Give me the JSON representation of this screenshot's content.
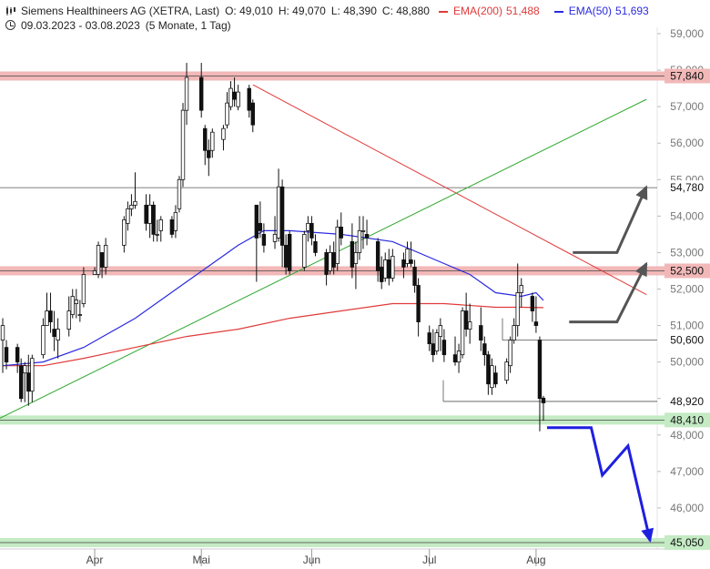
{
  "header": {
    "title": "Siemens Healthineers AG (XETRA, Last)",
    "open": "O: 49,010",
    "high": "H: 49,070",
    "low": "L: 48,390",
    "close": "C: 48,880",
    "ema200_label": "EMA(200)",
    "ema200_value": "51,488",
    "ema50_label": "EMA(50)",
    "ema50_value": "51,693",
    "period": "09.03.2023 - 03.08.2023",
    "interval": "(5 Monate, 1 Tag)",
    "ema200_color": "#e03a3a",
    "ema50_color": "#2a2ae0"
  },
  "chart_data": {
    "type": "candlestick",
    "ylim": [
      44950,
      59150
    ],
    "y_ticks": [
      {
        "value": 59000,
        "label": "59,000"
      },
      {
        "value": 58000,
        "label": "58,000"
      },
      {
        "value": 57000,
        "label": "57,000"
      },
      {
        "value": 56000,
        "label": "56,000"
      },
      {
        "value": 55000,
        "label": "55,000"
      },
      {
        "value": 54000,
        "label": "54,000"
      },
      {
        "value": 53000,
        "label": "53,000"
      },
      {
        "value": 52000,
        "label": "52,000"
      },
      {
        "value": 51000,
        "label": "51,000"
      },
      {
        "value": 50000,
        "label": "50,000"
      },
      {
        "value": 49000,
        "label": "49,000"
      },
      {
        "value": 48000,
        "label": "48,000"
      },
      {
        "value": 47000,
        "label": "47,000"
      },
      {
        "value": 46000,
        "label": "46,000"
      }
    ],
    "x_ticks": [
      {
        "label": "Apr",
        "date": "2023-04-03"
      },
      {
        "label": "Mai",
        "date": "2023-05-02"
      },
      {
        "label": "Jun",
        "date": "2023-06-01"
      },
      {
        "label": "Jul",
        "date": "2023-07-03"
      },
      {
        "label": "Aug",
        "date": "2023-08-01"
      }
    ],
    "candles": [
      {
        "date": "2023-03-09",
        "o": 50.6,
        "h": 51.2,
        "l": 49.7,
        "c": 51.0
      },
      {
        "date": "2023-03-10",
        "o": 50.4,
        "h": 50.6,
        "l": 49.8,
        "c": 50.0
      },
      {
        "date": "2023-03-13",
        "o": 50.4,
        "h": 50.5,
        "l": 49.7,
        "c": 50.0
      },
      {
        "date": "2023-03-14",
        "o": 49.9,
        "h": 50.1,
        "l": 48.9,
        "c": 49.0
      },
      {
        "date": "2023-03-15",
        "o": 49.7,
        "h": 50.0,
        "l": 48.9,
        "c": 49.9
      },
      {
        "date": "2023-03-16",
        "o": 49.7,
        "h": 50.2,
        "l": 48.8,
        "c": 49.2
      },
      {
        "date": "2023-03-17",
        "o": 49.2,
        "h": 50.2,
        "l": 48.9,
        "c": 50.1
      },
      {
        "date": "2023-03-20",
        "o": 50.2,
        "h": 51.2,
        "l": 50.1,
        "c": 51.0
      },
      {
        "date": "2023-03-21",
        "o": 51.0,
        "h": 51.9,
        "l": 51.0,
        "c": 51.4
      },
      {
        "date": "2023-03-22",
        "o": 51.4,
        "h": 51.9,
        "l": 50.8,
        "c": 51.1
      },
      {
        "date": "2023-03-23",
        "o": 50.9,
        "h": 51.4,
        "l": 50.3,
        "c": 50.7
      },
      {
        "date": "2023-03-24",
        "o": 50.6,
        "h": 51.2,
        "l": 50.1,
        "c": 50.9
      },
      {
        "date": "2023-03-27",
        "o": 50.9,
        "h": 51.8,
        "l": 50.7,
        "c": 51.4
      },
      {
        "date": "2023-03-28",
        "o": 51.3,
        "h": 52.0,
        "l": 51.2,
        "c": 51.8
      },
      {
        "date": "2023-03-29",
        "o": 51.6,
        "h": 52.0,
        "l": 51.2,
        "c": 51.7
      },
      {
        "date": "2023-03-30",
        "o": 51.3,
        "h": 51.7,
        "l": 51.1,
        "c": 51.3
      },
      {
        "date": "2023-03-31",
        "o": 51.6,
        "h": 52.6,
        "l": 51.5,
        "c": 52.4
      },
      {
        "date": "2023-04-03",
        "o": 52.4,
        "h": 52.6,
        "l": 52.4,
        "c": 52.5
      },
      {
        "date": "2023-04-04",
        "o": 52.4,
        "h": 53.3,
        "l": 52.3,
        "c": 53.2
      },
      {
        "date": "2023-04-05",
        "o": 53.0,
        "h": 53.0,
        "l": 52.3,
        "c": 52.6
      },
      {
        "date": "2023-04-06",
        "o": 52.6,
        "h": 53.4,
        "l": 52.4,
        "c": 53.2
      },
      {
        "date": "2023-04-11",
        "o": 53.2,
        "h": 54.0,
        "l": 53.0,
        "c": 53.9
      },
      {
        "date": "2023-04-12",
        "o": 53.8,
        "h": 54.4,
        "l": 53.6,
        "c": 54.2
      },
      {
        "date": "2023-04-13",
        "o": 54.2,
        "h": 54.6,
        "l": 54.0,
        "c": 54.3
      },
      {
        "date": "2023-04-14",
        "o": 54.3,
        "h": 55.2,
        "l": 54.2,
        "c": 54.4
      },
      {
        "date": "2023-04-17",
        "o": 54.3,
        "h": 54.6,
        "l": 53.6,
        "c": 53.8
      },
      {
        "date": "2023-04-18",
        "o": 53.8,
        "h": 54.6,
        "l": 53.4,
        "c": 54.3
      },
      {
        "date": "2023-04-19",
        "o": 54.3,
        "h": 54.4,
        "l": 53.3,
        "c": 53.5
      },
      {
        "date": "2023-04-20",
        "o": 53.5,
        "h": 53.9,
        "l": 53.3,
        "c": 53.5
      },
      {
        "date": "2023-04-21",
        "o": 53.6,
        "h": 54.0,
        "l": 53.3,
        "c": 53.9
      },
      {
        "date": "2023-04-24",
        "o": 53.9,
        "h": 54.0,
        "l": 53.4,
        "c": 53.5
      },
      {
        "date": "2023-04-25",
        "o": 53.6,
        "h": 54.3,
        "l": 53.4,
        "c": 54.1
      },
      {
        "date": "2023-04-26",
        "o": 54.2,
        "h": 55.1,
        "l": 54.1,
        "c": 55.0
      },
      {
        "date": "2023-04-27",
        "o": 55.0,
        "h": 57.1,
        "l": 54.8,
        "c": 56.9
      },
      {
        "date": "2023-04-28",
        "o": 56.9,
        "h": 58.2,
        "l": 56.5,
        "c": 57.8
      },
      {
        "date": "2023-05-02",
        "o": 57.8,
        "h": 58.2,
        "l": 56.7,
        "c": 56.9
      },
      {
        "date": "2023-05-03",
        "o": 56.4,
        "h": 56.5,
        "l": 55.4,
        "c": 55.8
      },
      {
        "date": "2023-05-04",
        "o": 55.8,
        "h": 56.1,
        "l": 55.1,
        "c": 55.6
      },
      {
        "date": "2023-05-05",
        "o": 55.8,
        "h": 56.4,
        "l": 55.6,
        "c": 56.3
      },
      {
        "date": "2023-05-08",
        "o": 56.1,
        "h": 56.5,
        "l": 55.8,
        "c": 56.4
      },
      {
        "date": "2023-05-09",
        "o": 56.5,
        "h": 57.4,
        "l": 56.4,
        "c": 57.1
      },
      {
        "date": "2023-05-10",
        "o": 57.0,
        "h": 57.7,
        "l": 56.9,
        "c": 57.5
      },
      {
        "date": "2023-05-11",
        "o": 57.4,
        "h": 57.8,
        "l": 57.0,
        "c": 57.2
      },
      {
        "date": "2023-05-12",
        "o": 57.0,
        "h": 57.6,
        "l": 56.9,
        "c": 57.4
      },
      {
        "date": "2023-05-15",
        "o": 57.5,
        "h": 57.6,
        "l": 56.7,
        "c": 56.9
      },
      {
        "date": "2023-05-16",
        "o": 57.1,
        "h": 57.2,
        "l": 56.3,
        "c": 56.5
      },
      {
        "date": "2023-05-17",
        "o": 54.3,
        "h": 54.3,
        "l": 52.2,
        "c": 53.4
      },
      {
        "date": "2023-05-18",
        "o": 53.8,
        "h": 54.4,
        "l": 53.4,
        "c": 53.6
      },
      {
        "date": "2023-05-19",
        "o": 53.5,
        "h": 53.8,
        "l": 53.0,
        "c": 53.2
      },
      {
        "date": "2023-05-22",
        "o": 53.3,
        "h": 54.0,
        "l": 53.1,
        "c": 53.5
      },
      {
        "date": "2023-05-23",
        "o": 53.4,
        "h": 55.3,
        "l": 53.3,
        "c": 54.8
      },
      {
        "date": "2023-05-24",
        "o": 54.8,
        "h": 55.0,
        "l": 52.6,
        "c": 53.2
      },
      {
        "date": "2023-05-25",
        "o": 53.2,
        "h": 53.5,
        "l": 52.4,
        "c": 52.6
      },
      {
        "date": "2023-05-26",
        "o": 53.5,
        "h": 53.6,
        "l": 52.4,
        "c": 52.5
      },
      {
        "date": "2023-05-30",
        "o": 52.6,
        "h": 53.6,
        "l": 52.5,
        "c": 53.5
      },
      {
        "date": "2023-05-31",
        "o": 53.6,
        "h": 54.0,
        "l": 53.3,
        "c": 53.8
      },
      {
        "date": "2023-06-01",
        "o": 53.8,
        "h": 54.0,
        "l": 53.2,
        "c": 53.4
      },
      {
        "date": "2023-06-02",
        "o": 53.3,
        "h": 53.5,
        "l": 52.9,
        "c": 53.0
      },
      {
        "date": "2023-06-05",
        "o": 53.0,
        "h": 53.1,
        "l": 52.1,
        "c": 52.4
      },
      {
        "date": "2023-06-06",
        "o": 52.5,
        "h": 53.2,
        "l": 52.4,
        "c": 53.0
      },
      {
        "date": "2023-06-07",
        "o": 53.0,
        "h": 53.3,
        "l": 52.4,
        "c": 52.6
      },
      {
        "date": "2023-06-08",
        "o": 52.7,
        "h": 53.9,
        "l": 52.5,
        "c": 53.7
      },
      {
        "date": "2023-06-09",
        "o": 53.7,
        "h": 54.1,
        "l": 53.2,
        "c": 53.4
      },
      {
        "date": "2023-06-12",
        "o": 53.3,
        "h": 53.8,
        "l": 52.3,
        "c": 52.6
      },
      {
        "date": "2023-06-13",
        "o": 52.7,
        "h": 53.3,
        "l": 52.0,
        "c": 53.0
      },
      {
        "date": "2023-06-14",
        "o": 53.0,
        "h": 54.0,
        "l": 52.8,
        "c": 53.6
      },
      {
        "date": "2023-06-15",
        "o": 53.6,
        "h": 54.0,
        "l": 53.1,
        "c": 53.6
      },
      {
        "date": "2023-06-16",
        "o": 53.5,
        "h": 53.9,
        "l": 53.2,
        "c": 53.4
      },
      {
        "date": "2023-06-19",
        "o": 53.3,
        "h": 53.4,
        "l": 52.2,
        "c": 52.5
      },
      {
        "date": "2023-06-20",
        "o": 52.6,
        "h": 52.9,
        "l": 52.0,
        "c": 52.2
      },
      {
        "date": "2023-06-21",
        "o": 52.3,
        "h": 53.0,
        "l": 52.2,
        "c": 52.8
      },
      {
        "date": "2023-06-22",
        "o": 52.8,
        "h": 53.1,
        "l": 52.1,
        "c": 52.3
      },
      {
        "date": "2023-06-23",
        "o": 52.3,
        "h": 53.1,
        "l": 52.2,
        "c": 52.9
      },
      {
        "date": "2023-06-26",
        "o": 52.8,
        "h": 53.0,
        "l": 52.3,
        "c": 52.6
      },
      {
        "date": "2023-06-27",
        "o": 52.7,
        "h": 53.3,
        "l": 52.6,
        "c": 53.1
      },
      {
        "date": "2023-06-28",
        "o": 52.8,
        "h": 53.3,
        "l": 52.6,
        "c": 52.7
      },
      {
        "date": "2023-06-29",
        "o": 52.6,
        "h": 52.8,
        "l": 51.9,
        "c": 52.1
      },
      {
        "date": "2023-06-30",
        "o": 52.1,
        "h": 52.3,
        "l": 50.7,
        "c": 51.1
      },
      {
        "date": "2023-07-03",
        "o": 50.8,
        "h": 51.0,
        "l": 50.3,
        "c": 50.5
      },
      {
        "date": "2023-07-04",
        "o": 50.5,
        "h": 50.9,
        "l": 50.0,
        "c": 50.2
      },
      {
        "date": "2023-07-05",
        "o": 50.3,
        "h": 50.9,
        "l": 50.2,
        "c": 50.8
      },
      {
        "date": "2023-07-06",
        "o": 50.7,
        "h": 51.2,
        "l": 50.3,
        "c": 51.0
      },
      {
        "date": "2023-07-07",
        "o": 50.6,
        "h": 50.9,
        "l": 50.0,
        "c": 50.2
      },
      {
        "date": "2023-07-10",
        "o": 50.2,
        "h": 50.7,
        "l": 49.9,
        "c": 50.0
      },
      {
        "date": "2023-07-11",
        "o": 50.0,
        "h": 50.5,
        "l": 49.7,
        "c": 50.3
      },
      {
        "date": "2023-07-12",
        "o": 50.2,
        "h": 51.5,
        "l": 50.1,
        "c": 51.4
      },
      {
        "date": "2023-07-13",
        "o": 51.4,
        "h": 51.9,
        "l": 50.7,
        "c": 50.9
      },
      {
        "date": "2023-07-14",
        "o": 50.9,
        "h": 51.6,
        "l": 50.5,
        "c": 51.1
      },
      {
        "date": "2023-07-17",
        "o": 51.0,
        "h": 51.5,
        "l": 50.3,
        "c": 50.6
      },
      {
        "date": "2023-07-18",
        "o": 50.5,
        "h": 50.7,
        "l": 49.9,
        "c": 50.2
      },
      {
        "date": "2023-07-19",
        "o": 50.2,
        "h": 50.3,
        "l": 49.1,
        "c": 49.4
      },
      {
        "date": "2023-07-20",
        "o": 49.3,
        "h": 50.1,
        "l": 49.1,
        "c": 49.9
      },
      {
        "date": "2023-07-21",
        "o": 49.7,
        "h": 49.9,
        "l": 49.3,
        "c": 49.4
      },
      {
        "date": "2023-07-24",
        "o": 49.5,
        "h": 50.1,
        "l": 49.4,
        "c": 50.0
      },
      {
        "date": "2023-07-25",
        "o": 49.9,
        "h": 50.7,
        "l": 49.7,
        "c": 50.6
      },
      {
        "date": "2023-07-26",
        "o": 50.6,
        "h": 51.2,
        "l": 50.5,
        "c": 51.0
      },
      {
        "date": "2023-07-27",
        "o": 51.0,
        "h": 52.7,
        "l": 50.7,
        "c": 51.9
      },
      {
        "date": "2023-07-28",
        "o": 51.9,
        "h": 52.3,
        "l": 51.5,
        "c": 52.1
      },
      {
        "date": "2023-07-31",
        "o": 51.8,
        "h": 51.9,
        "l": 51.1,
        "c": 51.4
      },
      {
        "date": "2023-08-01",
        "o": 51.1,
        "h": 51.8,
        "l": 50.8,
        "c": 51.0
      },
      {
        "date": "2023-08-02",
        "o": 50.6,
        "h": 50.7,
        "l": 48.1,
        "c": 49.0
      },
      {
        "date": "2023-08-03",
        "o": 49.01,
        "h": 49.07,
        "l": 48.39,
        "c": 48.88
      }
    ],
    "overlay_candles_note": "",
    "ema200": [
      [
        "2023-03-09",
        49.9
      ],
      [
        "2023-03-20",
        49.9
      ],
      [
        "2023-03-31",
        50.1
      ],
      [
        "2023-04-14",
        50.4
      ],
      [
        "2023-04-28",
        50.7
      ],
      [
        "2023-05-12",
        50.9
      ],
      [
        "2023-05-26",
        51.2
      ],
      [
        "2023-06-09",
        51.4
      ],
      [
        "2023-06-23",
        51.6
      ],
      [
        "2023-07-07",
        51.6
      ],
      [
        "2023-07-21",
        51.5
      ],
      [
        "2023-07-28",
        51.5
      ],
      [
        "2023-08-03",
        51.49
      ]
    ],
    "ema50": [
      [
        "2023-03-09",
        49.9
      ],
      [
        "2023-03-20",
        50.0
      ],
      [
        "2023-03-31",
        50.4
      ],
      [
        "2023-04-14",
        51.2
      ],
      [
        "2023-04-28",
        52.2
      ],
      [
        "2023-05-05",
        52.7
      ],
      [
        "2023-05-12",
        53.2
      ],
      [
        "2023-05-19",
        53.6
      ],
      [
        "2023-05-26",
        53.6
      ],
      [
        "2023-06-09",
        53.5
      ],
      [
        "2023-06-23",
        53.3
      ],
      [
        "2023-07-07",
        52.7
      ],
      [
        "2023-07-14",
        52.4
      ],
      [
        "2023-07-21",
        51.9
      ],
      [
        "2023-07-28",
        51.8
      ],
      [
        "2023-08-01",
        51.9
      ],
      [
        "2023-08-03",
        51.69
      ]
    ],
    "resistance_zones": [
      {
        "value": 57840,
        "label": "57,840",
        "color": "#f2b8b8"
      },
      {
        "value": 52500,
        "label": "52,500",
        "color": "#f2b8b8"
      }
    ],
    "support_zones": [
      {
        "value": 48410,
        "label": "48,410",
        "color": "#c4ebc4"
      },
      {
        "value": 45050,
        "label": "45,050",
        "color": "#c4ebc4"
      }
    ],
    "price_lines": [
      {
        "value": 54780,
        "label": "54,780"
      },
      {
        "value": 50600,
        "label": "50,600"
      },
      {
        "value": 48920,
        "label": "48,920"
      }
    ],
    "trend_lines": [
      {
        "name": "downtrend",
        "color": "#e03a3a",
        "from": [
          "2023-05-16",
          57.6
        ],
        "to": [
          "2023-08-31",
          51.85
        ]
      },
      {
        "name": "uptrend",
        "color": "#2ea82e",
        "from": [
          "2023-03-03",
          48.2
        ],
        "to": [
          "2023-08-31",
          57.2
        ]
      }
    ],
    "arrows": [
      {
        "name": "scenario-up-1",
        "color": "#555555",
        "points": [
          [
            "2023-08-10",
            51.1
          ],
          [
            "2023-08-23",
            51.1
          ],
          [
            "2023-08-31",
            52.7
          ]
        ]
      },
      {
        "name": "scenario-up-2",
        "color": "#555555",
        "points": [
          [
            "2023-08-11",
            53.0
          ],
          [
            "2023-08-23",
            53.0
          ],
          [
            "2023-08-31",
            54.8
          ]
        ]
      },
      {
        "name": "scenario-down",
        "color": "#1f1fe0",
        "points": [
          [
            "2023-08-04",
            48.2
          ],
          [
            "2023-08-16",
            48.2
          ],
          [
            "2023-08-19",
            46.9
          ],
          [
            "2023-08-26",
            47.7
          ],
          [
            "2023-09-01",
            45.1
          ]
        ]
      }
    ]
  }
}
